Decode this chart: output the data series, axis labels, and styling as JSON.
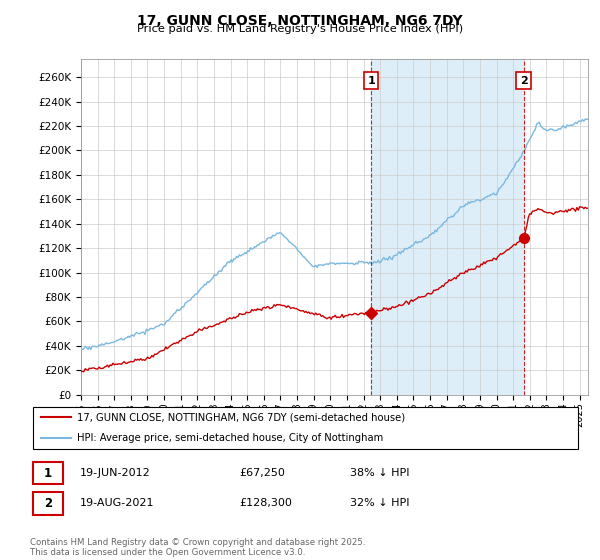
{
  "title": "17, GUNN CLOSE, NOTTINGHAM, NG6 7DY",
  "subtitle": "Price paid vs. HM Land Registry's House Price Index (HPI)",
  "ylabel_ticks": [
    "£0",
    "£20K",
    "£40K",
    "£60K",
    "£80K",
    "£100K",
    "£120K",
    "£140K",
    "£160K",
    "£180K",
    "£200K",
    "£220K",
    "£240K",
    "£260K"
  ],
  "ytick_values": [
    0,
    20000,
    40000,
    60000,
    80000,
    100000,
    120000,
    140000,
    160000,
    180000,
    200000,
    220000,
    240000,
    260000
  ],
  "ylim": [
    0,
    275000
  ],
  "xlim_start": 1995.0,
  "xlim_end": 2025.5,
  "hpi_color": "#7ab8e0",
  "hpi_fill_color": "#ddeef8",
  "price_color": "#cc0000",
  "dashed_vline_color": "#cc0000",
  "sale1_x": 2012.46,
  "sale1_y": 67250,
  "sale2_x": 2021.63,
  "sale2_y": 128300,
  "marker_color": "#cc0000",
  "legend_label1": "17, GUNN CLOSE, NOTTINGHAM, NG6 7DY (semi-detached house)",
  "legend_label2": "HPI: Average price, semi-detached house, City of Nottingham",
  "annot1_text": "19-JUN-2012",
  "annot1_price": "£67,250",
  "annot1_hpi": "38% ↓ HPI",
  "annot2_text": "19-AUG-2021",
  "annot2_price": "£128,300",
  "annot2_hpi": "32% ↓ HPI",
  "footer": "Contains HM Land Registry data © Crown copyright and database right 2025.\nThis data is licensed under the Open Government Licence v3.0.",
  "background_color": "#ffffff",
  "grid_color": "#cccccc"
}
